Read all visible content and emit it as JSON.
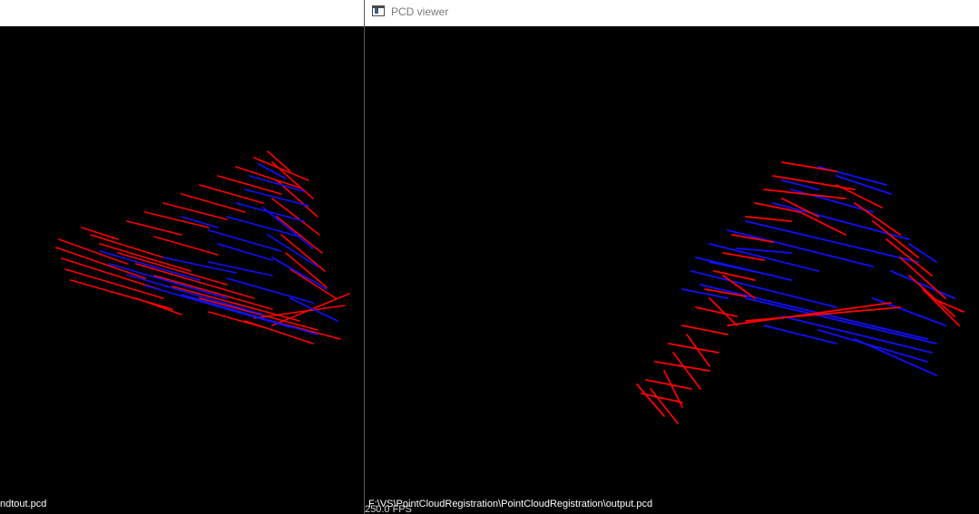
{
  "windows": {
    "left": {
      "filename": "ndtout.pcd"
    },
    "right": {
      "title": "PCD viewer",
      "filepath": "F:\\VS\\PointCloudRegistration\\PointCloudRegistration\\output.pcd",
      "fps": "250.0 FPS"
    }
  },
  "colors": {
    "background": "#000000",
    "cloud_a": "#ff0000",
    "cloud_b": "#0000ff",
    "text": "#ffffff"
  }
}
